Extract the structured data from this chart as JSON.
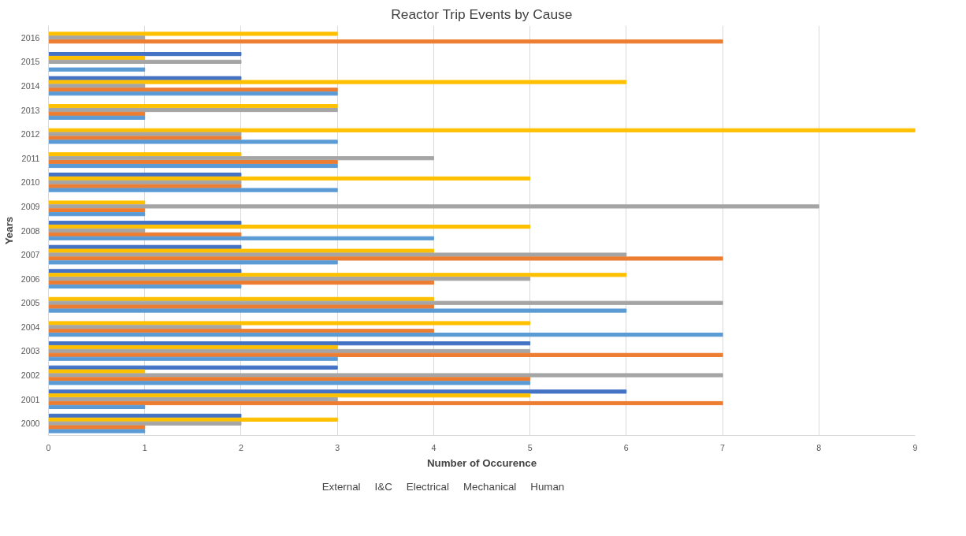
{
  "chart_data": {
    "type": "bar",
    "orientation": "horizontal",
    "title": "Reactor Trip Events by Cause",
    "xlabel": "Number of Occurence",
    "ylabel": "Years",
    "categories": [
      "2016",
      "2015",
      "2014",
      "2013",
      "2012",
      "2011",
      "2010",
      "2009",
      "2008",
      "2007",
      "2006",
      "2005",
      "2004",
      "2003",
      "2002",
      "2001",
      "2000"
    ],
    "series": [
      {
        "name": "External",
        "color": "#4472c4",
        "values": [
          0,
          2,
          2,
          0,
          0,
          0,
          2,
          0,
          2,
          2,
          2,
          0,
          0,
          5,
          3,
          6,
          2
        ]
      },
      {
        "name": "I&C",
        "color": "#ffc000",
        "values": [
          3,
          1,
          6,
          3,
          9,
          2,
          5,
          1,
          5,
          4,
          6,
          4,
          5,
          3,
          1,
          5,
          3
        ]
      },
      {
        "name": "Electrical",
        "color": "#a5a5a5",
        "values": [
          1,
          2,
          1,
          3,
          2,
          4,
          2,
          8,
          1,
          6,
          5,
          7,
          2,
          5,
          7,
          3,
          2
        ]
      },
      {
        "name": "Mechanical",
        "color": "#ed7d31",
        "values": [
          7,
          0,
          3,
          1,
          2,
          3,
          2,
          1,
          2,
          7,
          4,
          4,
          4,
          7,
          5,
          7,
          1
        ]
      },
      {
        "name": "Human",
        "color": "#5b9bd5",
        "values": [
          0,
          1,
          3,
          1,
          3,
          3,
          3,
          1,
          4,
          3,
          2,
          6,
          7,
          3,
          5,
          1,
          1
        ]
      }
    ],
    "xlim": [
      0,
      9
    ],
    "xticks": [
      0,
      1,
      2,
      3,
      4,
      5,
      6,
      7,
      8,
      9
    ],
    "grid": "x",
    "legend": "bottom"
  }
}
